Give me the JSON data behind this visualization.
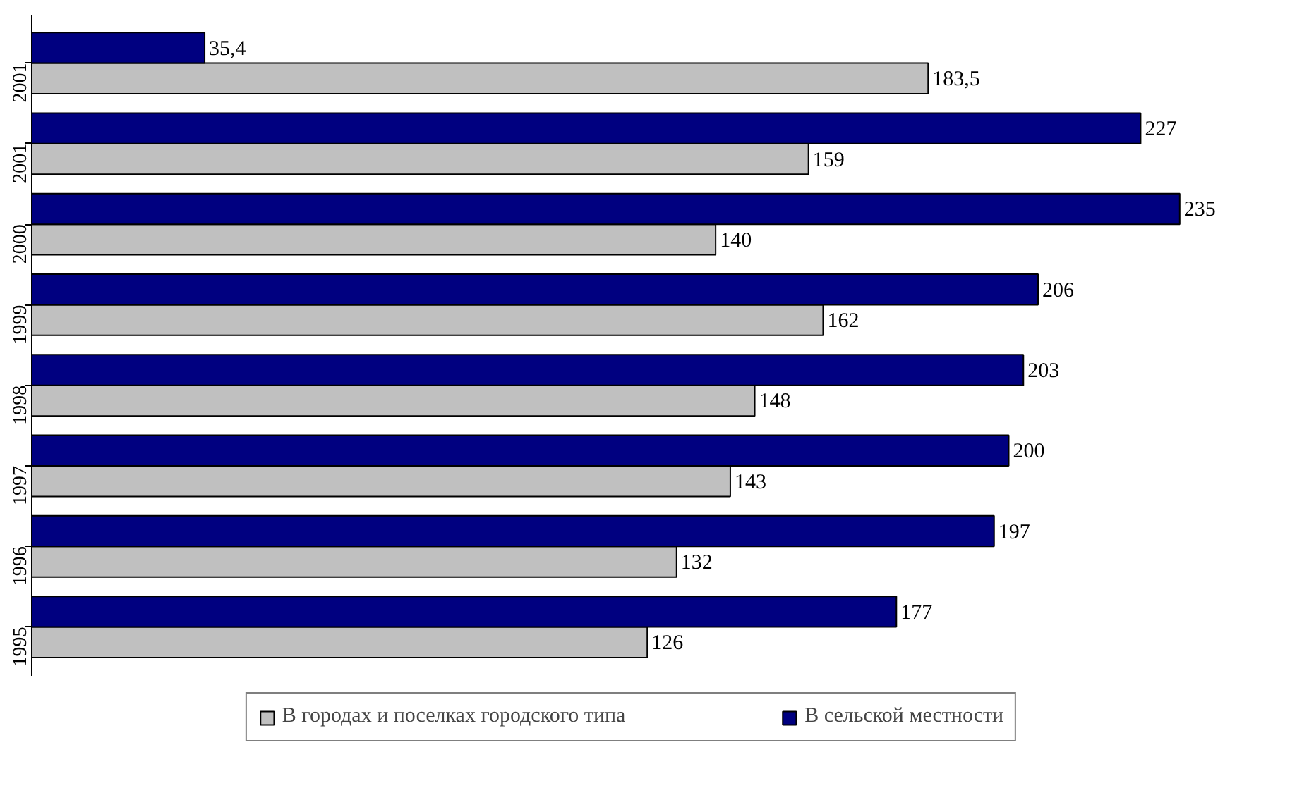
{
  "chart_data": {
    "type": "bar",
    "orientation": "horizontal",
    "categories": [
      "2001",
      "2001",
      "2000",
      "1999",
      "1998",
      "1997",
      "1996",
      "1995"
    ],
    "series": [
      {
        "name": "В городах и поселках городского типа",
        "color": "#c0c0c0",
        "values": [
          183.5,
          159,
          140,
          162,
          148,
          143,
          132,
          126
        ],
        "value_labels": [
          "183,5",
          "159",
          "140",
          "162",
          "148",
          "143",
          "132",
          "126"
        ]
      },
      {
        "name": "В сельской местности",
        "color": "#000080",
        "values": [
          35.4,
          227,
          235,
          206,
          203,
          200,
          197,
          177
        ],
        "value_labels": [
          "35,4",
          "227",
          "235",
          "206",
          "203",
          "200",
          "197",
          "177"
        ]
      }
    ],
    "legend": "bottom",
    "tick_labels": "y",
    "grid": false
  }
}
